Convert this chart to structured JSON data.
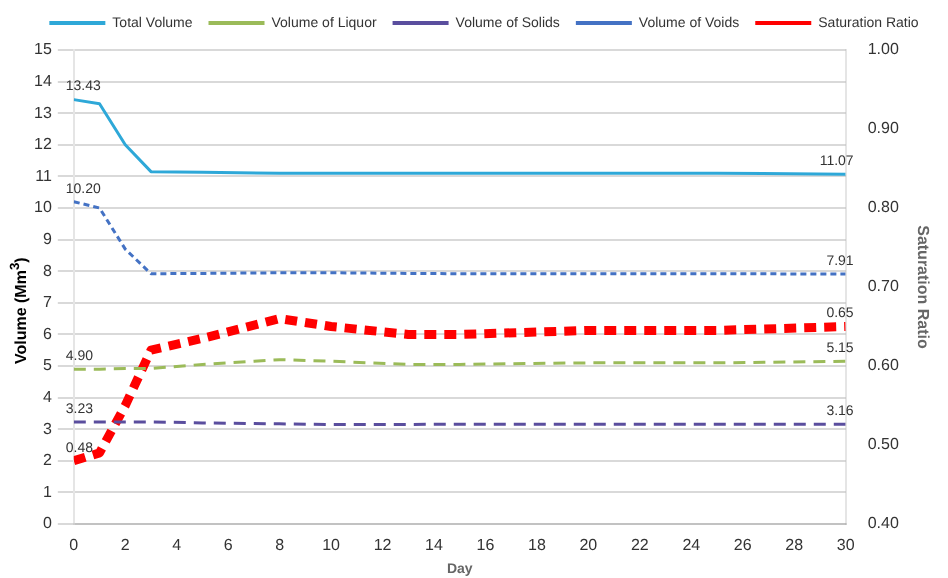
{
  "chart_data": {
    "type": "line",
    "xlabel": "Day",
    "ylabel": "Volume (Mm$^{3}$)",
    "y2label": "Saturation Ratio",
    "xlim": [
      0,
      30
    ],
    "xticks": [
      0,
      2,
      4,
      6,
      8,
      10,
      12,
      14,
      16,
      18,
      20,
      22,
      24,
      26,
      28,
      30
    ],
    "ylim": [
      0,
      15
    ],
    "yticks": [
      0,
      1,
      2,
      3,
      4,
      5,
      6,
      7,
      8,
      9,
      10,
      11,
      12,
      13,
      14,
      15
    ],
    "y2lim": [
      0.4,
      1.0
    ],
    "y2ticks": [
      {
        "value": 0.4,
        "label": "0.40"
      },
      {
        "value": 0.5,
        "label": "0.50"
      },
      {
        "value": 0.6,
        "label": "0.60"
      },
      {
        "value": 0.7,
        "label": "0.70"
      },
      {
        "value": 0.8,
        "label": "0.80"
      },
      {
        "value": 0.9,
        "label": "0.90"
      },
      {
        "value": 1.0,
        "label": "1.00"
      }
    ],
    "grid": "y",
    "legend": "top",
    "marker": "none",
    "x": [
      0,
      1,
      2,
      3,
      5,
      8,
      10,
      13,
      15,
      20,
      25,
      30
    ],
    "series": [
      {
        "name": "Total Volume",
        "color": "#2ea8d8",
        "line_style": "solid",
        "values": [
          13.43,
          13.3,
          12.0,
          11.15,
          11.13,
          11.1,
          11.1,
          11.1,
          11.1,
          11.1,
          11.1,
          11.07
        ],
        "value_labels": [
          "13.43",
          null,
          null,
          null,
          null,
          null,
          null,
          null,
          null,
          null,
          null,
          "11.07"
        ]
      },
      {
        "name": "Volume of Liquor",
        "color": "#9bbb59",
        "line_style": "dashed",
        "values": [
          4.9,
          4.9,
          4.92,
          4.92,
          5.05,
          5.2,
          5.15,
          5.05,
          5.05,
          5.1,
          5.1,
          5.15
        ],
        "value_labels": [
          "4.90",
          null,
          null,
          null,
          null,
          null,
          null,
          null,
          null,
          null,
          null,
          "5.15"
        ]
      },
      {
        "name": "Volume of Solids",
        "color": "#5a4e9e",
        "line_style": "dashed",
        "values": [
          3.23,
          3.23,
          3.23,
          3.23,
          3.2,
          3.17,
          3.15,
          3.15,
          3.16,
          3.16,
          3.16,
          3.16
        ],
        "value_labels": [
          "3.23",
          null,
          null,
          null,
          null,
          null,
          null,
          null,
          null,
          null,
          null,
          "3.16"
        ]
      },
      {
        "name": "Volume of Voids",
        "color": "#4472c4",
        "line_style": "dotted",
        "values": [
          10.2,
          10.0,
          8.7,
          7.92,
          7.93,
          7.95,
          7.95,
          7.93,
          7.92,
          7.92,
          7.92,
          7.91
        ],
        "value_labels": [
          "10.20",
          null,
          null,
          null,
          null,
          null,
          null,
          null,
          null,
          null,
          null,
          "7.91"
        ]
      },
      {
        "name": "Saturation Ratio",
        "color": "#ff0000",
        "line_style": "dashed",
        "axis": "y2",
        "values": [
          0.48,
          0.49,
          0.55,
          0.62,
          0.635,
          0.66,
          0.65,
          0.64,
          0.64,
          0.645,
          0.645,
          0.65
        ],
        "value_labels": [
          "0.48",
          null,
          null,
          null,
          null,
          null,
          null,
          null,
          null,
          null,
          null,
          "0.65"
        ]
      }
    ]
  }
}
